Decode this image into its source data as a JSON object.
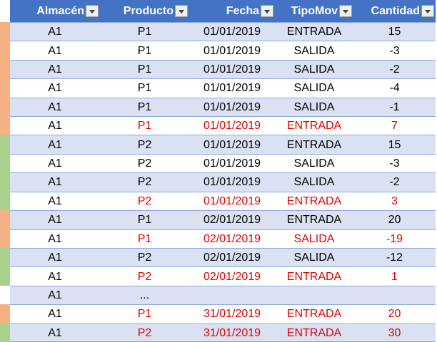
{
  "table": {
    "columns": [
      "Almacén",
      "Producto",
      "Fecha",
      "TipoMov",
      "Cantidad"
    ],
    "rows": [
      {
        "cells": [
          "A1",
          "P1",
          "01/01/2019",
          "ENTRADA",
          "15"
        ],
        "strip": "#F4B183",
        "highlight": false
      },
      {
        "cells": [
          "A1",
          "P1",
          "01/01/2019",
          "SALIDA",
          "-3"
        ],
        "strip": "#F4B183",
        "highlight": false
      },
      {
        "cells": [
          "A1",
          "P1",
          "01/01/2019",
          "SALIDA",
          "-2"
        ],
        "strip": "#F4B183",
        "highlight": false
      },
      {
        "cells": [
          "A1",
          "P1",
          "01/01/2019",
          "SALIDA",
          "-4"
        ],
        "strip": "#F4B183",
        "highlight": false
      },
      {
        "cells": [
          "A1",
          "P1",
          "01/01/2019",
          "SALIDA",
          "-1"
        ],
        "strip": "#F4B183",
        "highlight": false
      },
      {
        "cells": [
          "A1",
          "P1",
          "01/01/2019",
          "ENTRADA",
          "7"
        ],
        "strip": "#F4B183",
        "highlight": true
      },
      {
        "cells": [
          "A1",
          "P2",
          "01/01/2019",
          "ENTRADA",
          "15"
        ],
        "strip": "#A9D18E",
        "highlight": false
      },
      {
        "cells": [
          "A1",
          "P2",
          "01/01/2019",
          "SALIDA",
          "-3"
        ],
        "strip": "#A9D18E",
        "highlight": false
      },
      {
        "cells": [
          "A1",
          "P2",
          "01/01/2019",
          "SALIDA",
          "-2"
        ],
        "strip": "#A9D18E",
        "highlight": false
      },
      {
        "cells": [
          "A1",
          "P2",
          "01/01/2019",
          "ENTRADA",
          "3"
        ],
        "strip": "#A9D18E",
        "highlight": true
      },
      {
        "cells": [
          "A1",
          "P1",
          "02/01/2019",
          "ENTRADA",
          "20"
        ],
        "strip": "#F4B183",
        "highlight": false
      },
      {
        "cells": [
          "A1",
          "P1",
          "02/01/2019",
          "SALIDA",
          "-19"
        ],
        "strip": "#F4B183",
        "highlight": true
      },
      {
        "cells": [
          "A1",
          "P2",
          "02/01/2019",
          "SALIDA",
          "-12"
        ],
        "strip": "#A9D18E",
        "highlight": false
      },
      {
        "cells": [
          "A1",
          "P2",
          "02/01/2019",
          "ENTRADA",
          "1"
        ],
        "strip": "#A9D18E",
        "highlight": true
      },
      {
        "cells": [
          "A1",
          "...",
          null,
          null,
          null
        ],
        "strip": null,
        "highlight": false
      },
      {
        "cells": [
          "A1",
          "P1",
          "31/01/2019",
          "ENTRADA",
          "20"
        ],
        "strip": "#F4B183",
        "highlight": true
      },
      {
        "cells": [
          "A1",
          "P2",
          "31/01/2019",
          "ENTRADA",
          "30"
        ],
        "strip": "#A9D18E",
        "highlight": true
      }
    ]
  }
}
